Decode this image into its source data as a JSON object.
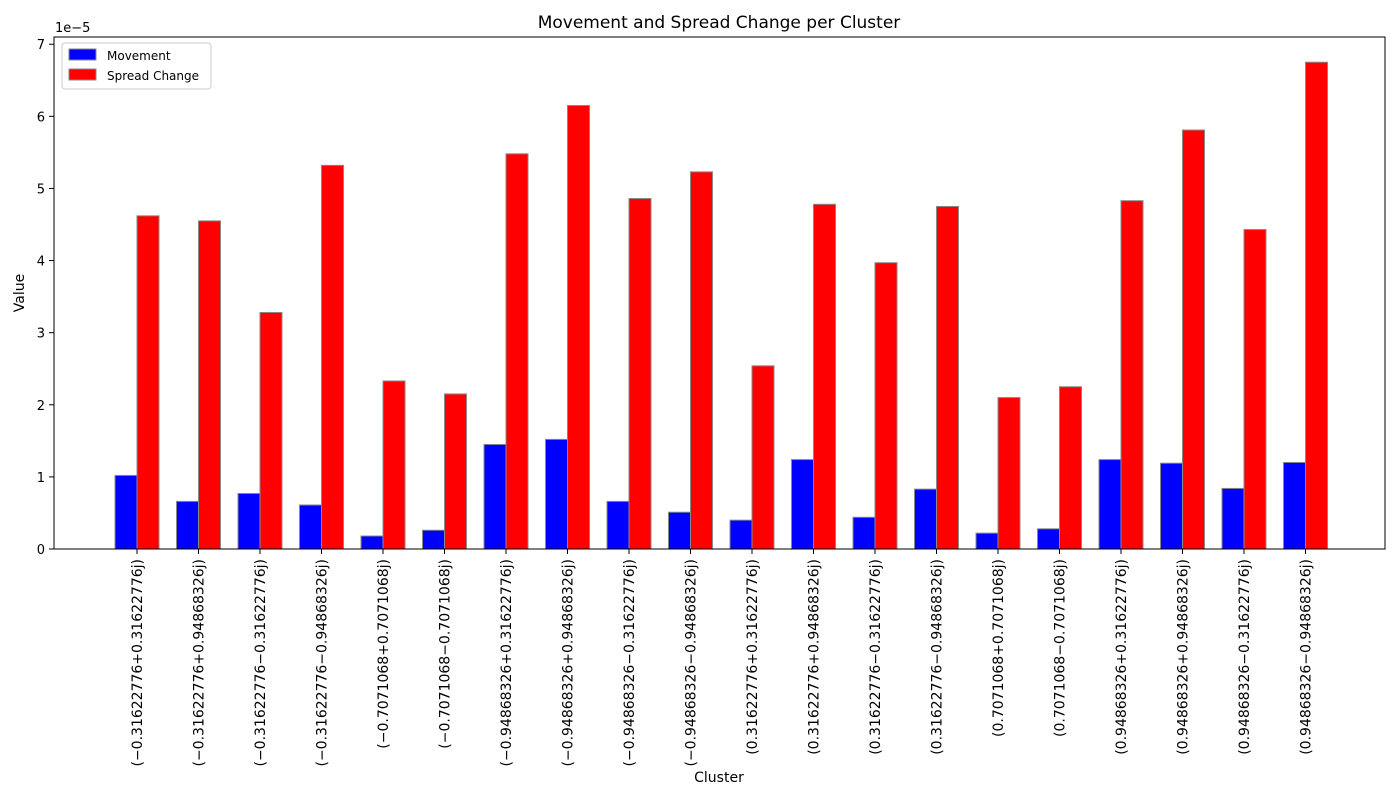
{
  "chart_data": {
    "type": "bar",
    "title": "Movement and Spread Change per Cluster",
    "xlabel": "Cluster",
    "ylabel": "Value",
    "scale_label": "1e−5",
    "scale": 1e-05,
    "ylim": [
      0,
      7.1
    ],
    "yticks": [
      "0",
      "1",
      "2",
      "3",
      "4",
      "5",
      "6",
      "7"
    ],
    "grid": false,
    "legend_position": "top-left",
    "categories": [
      "(−0.31622776+0.31622776j)",
      "(−0.31622776+0.94868326j)",
      "(−0.31622776−0.31622776j)",
      "(−0.31622776−0.94868326j)",
      "(−0.7071068+0.7071068j)",
      "(−0.7071068−0.7071068j)",
      "(−0.94868326+0.31622776j)",
      "(−0.94868326+0.94868326j)",
      "(−0.94868326−0.31622776j)",
      "(−0.94868326−0.94868326j)",
      "(0.31622776+0.31622776j)",
      "(0.31622776+0.94868326j)",
      "(0.31622776−0.31622776j)",
      "(0.31622776−0.94868326j)",
      "(0.7071068+0.7071068j)",
      "(0.7071068−0.7071068j)",
      "(0.94868326+0.31622776j)",
      "(0.94868326+0.94868326j)",
      "(0.94868326−0.31622776j)",
      "(0.94868326−0.94868326j)"
    ],
    "series": [
      {
        "name": "Movement",
        "color": "#0000ff",
        "values": [
          1.02,
          0.66,
          0.77,
          0.61,
          0.18,
          0.26,
          1.45,
          1.52,
          0.66,
          0.51,
          0.4,
          1.24,
          0.44,
          0.83,
          0.22,
          0.28,
          1.24,
          1.19,
          0.84,
          1.2
        ]
      },
      {
        "name": "Spread Change",
        "color": "#ff0000",
        "values": [
          4.62,
          4.55,
          3.28,
          5.32,
          2.33,
          2.15,
          5.48,
          6.15,
          4.86,
          5.23,
          2.54,
          4.78,
          3.97,
          4.75,
          2.1,
          2.25,
          4.83,
          5.81,
          4.43,
          6.75
        ]
      }
    ]
  }
}
